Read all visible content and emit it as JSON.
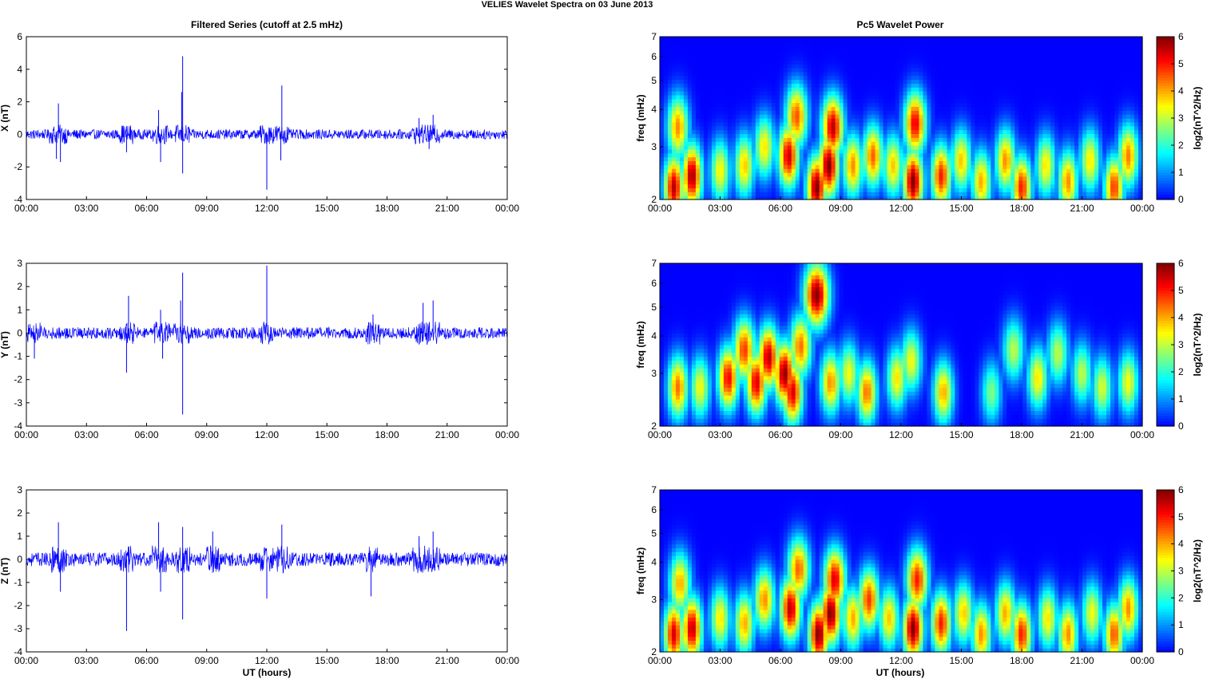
{
  "figure": {
    "title": "VELIES Wavelet Spectra on 03 June      2013",
    "left_column_title": "Filtered Series (cutoff at 2.5 mHz)",
    "right_column_title": "Pc5 Wavelet Power",
    "xlabel": "UT (hours)"
  },
  "chart_data": [
    {
      "type": "line",
      "panel": "X",
      "ylabel": "X (nT)",
      "x_range_hours": [
        0,
        24
      ],
      "x_ticks": [
        "00:00",
        "03:00",
        "06:00",
        "09:00",
        "12:00",
        "15:00",
        "18:00",
        "21:00",
        "00:00"
      ],
      "ylim": [
        -4,
        6
      ],
      "y_ticks": [
        "6",
        "4",
        "2",
        "0",
        "-2",
        "-4"
      ],
      "color": "#0000ff",
      "baseline_noise_nT": 0.3,
      "spikes": [
        {
          "x": 1.6,
          "y": 1.9
        },
        {
          "x": 1.7,
          "y": -1.7
        },
        {
          "x": 1.5,
          "y": -1.5
        },
        {
          "x": 6.6,
          "y": 1.5
        },
        {
          "x": 6.7,
          "y": -1.7
        },
        {
          "x": 5.0,
          "y": -1.1
        },
        {
          "x": 7.8,
          "y": 4.8
        },
        {
          "x": 7.8,
          "y": -2.4
        },
        {
          "x": 7.75,
          "y": 2.6
        },
        {
          "x": 12.0,
          "y": -3.4
        },
        {
          "x": 12.75,
          "y": 3.0
        },
        {
          "x": 12.7,
          "y": -1.6
        },
        {
          "x": 19.6,
          "y": 1.0
        },
        {
          "x": 20.3,
          "y": 1.2
        },
        {
          "x": 20.1,
          "y": -0.9
        }
      ]
    },
    {
      "type": "line",
      "panel": "Y",
      "ylabel": "Y (nT)",
      "x_range_hours": [
        0,
        24
      ],
      "x_ticks": [
        "00:00",
        "03:00",
        "06:00",
        "09:00",
        "12:00",
        "15:00",
        "18:00",
        "21:00",
        "00:00"
      ],
      "ylim": [
        -4,
        3
      ],
      "y_ticks": [
        "3",
        "2",
        "1",
        "0",
        "-1",
        "-2",
        "-3",
        "-4"
      ],
      "color": "#0000ff",
      "baseline_noise_nT": 0.25,
      "spikes": [
        {
          "x": 0.4,
          "y": -1.1
        },
        {
          "x": 5.0,
          "y": -1.7
        },
        {
          "x": 5.1,
          "y": 1.6
        },
        {
          "x": 6.7,
          "y": 1.0
        },
        {
          "x": 6.8,
          "y": -1.1
        },
        {
          "x": 7.8,
          "y": 2.6
        },
        {
          "x": 7.8,
          "y": -3.5
        },
        {
          "x": 7.7,
          "y": 1.4
        },
        {
          "x": 12.0,
          "y": 2.9
        },
        {
          "x": 17.3,
          "y": 0.8
        },
        {
          "x": 19.8,
          "y": 1.3
        },
        {
          "x": 20.3,
          "y": 1.4
        },
        {
          "x": 20.0,
          "y": -0.5
        }
      ]
    },
    {
      "type": "line",
      "panel": "Z",
      "ylabel": "Z (nT)",
      "x_range_hours": [
        0,
        24
      ],
      "x_ticks": [
        "00:00",
        "03:00",
        "06:00",
        "09:00",
        "12:00",
        "15:00",
        "18:00",
        "21:00",
        "00:00"
      ],
      "ylim": [
        -4,
        3
      ],
      "y_ticks": [
        "3",
        "2",
        "1",
        "0",
        "-1",
        "-2",
        "-3",
        "-4"
      ],
      "color": "#0000ff",
      "baseline_noise_nT": 0.3,
      "spikes": [
        {
          "x": 1.6,
          "y": 1.6
        },
        {
          "x": 1.7,
          "y": -1.4
        },
        {
          "x": 5.0,
          "y": -3.1
        },
        {
          "x": 6.6,
          "y": 1.6
        },
        {
          "x": 6.7,
          "y": -1.4
        },
        {
          "x": 7.8,
          "y": 1.4
        },
        {
          "x": 7.8,
          "y": -2.6
        },
        {
          "x": 9.3,
          "y": 1.2
        },
        {
          "x": 12.0,
          "y": -1.7
        },
        {
          "x": 12.75,
          "y": 1.5
        },
        {
          "x": 17.2,
          "y": -1.6
        },
        {
          "x": 19.6,
          "y": 1.0
        },
        {
          "x": 20.3,
          "y": 1.2
        }
      ]
    },
    {
      "type": "heatmap",
      "panel": "X",
      "ylabel": "freq (mHz)",
      "y_scale": "log",
      "ylim_mHz": [
        2,
        7
      ],
      "y_ticks": [
        "7",
        "6",
        "5",
        "4",
        "3",
        "2"
      ],
      "x_ticks": [
        "00:00",
        "03:00",
        "06:00",
        "09:00",
        "12:00",
        "15:00",
        "18:00",
        "21:00",
        "00:00"
      ],
      "colormap": "jet",
      "colorbar_label": "log2(nT^2/Hz)",
      "colorbar_ticks": [
        "6",
        "5",
        "4",
        "3",
        "2",
        "1",
        "0"
      ],
      "clim": [
        0,
        6
      ],
      "blobs": [
        {
          "t": 0.7,
          "f": 2.2,
          "p": 5.6
        },
        {
          "t": 1.6,
          "f": 2.4,
          "p": 5.8
        },
        {
          "t": 0.9,
          "f": 3.5,
          "p": 4.2
        },
        {
          "t": 3.0,
          "f": 2.5,
          "p": 3.5
        },
        {
          "t": 4.2,
          "f": 2.6,
          "p": 3.8
        },
        {
          "t": 5.2,
          "f": 3.0,
          "p": 3.6
        },
        {
          "t": 6.4,
          "f": 2.8,
          "p": 5.5
        },
        {
          "t": 6.8,
          "f": 3.8,
          "p": 4.6
        },
        {
          "t": 7.8,
          "f": 2.2,
          "p": 6.0
        },
        {
          "t": 8.4,
          "f": 2.6,
          "p": 6.0
        },
        {
          "t": 8.6,
          "f": 3.5,
          "p": 5.6
        },
        {
          "t": 9.6,
          "f": 2.6,
          "p": 4.2
        },
        {
          "t": 10.6,
          "f": 2.8,
          "p": 4.5
        },
        {
          "t": 11.6,
          "f": 2.6,
          "p": 3.8
        },
        {
          "t": 12.6,
          "f": 2.3,
          "p": 6.0
        },
        {
          "t": 12.7,
          "f": 3.6,
          "p": 5.3
        },
        {
          "t": 14.0,
          "f": 2.4,
          "p": 5.0
        },
        {
          "t": 15.0,
          "f": 2.7,
          "p": 3.8
        },
        {
          "t": 16.0,
          "f": 2.3,
          "p": 4.0
        },
        {
          "t": 17.2,
          "f": 2.7,
          "p": 4.2
        },
        {
          "t": 18.0,
          "f": 2.2,
          "p": 5.0
        },
        {
          "t": 19.2,
          "f": 2.6,
          "p": 3.6
        },
        {
          "t": 20.3,
          "f": 2.3,
          "p": 4.2
        },
        {
          "t": 21.4,
          "f": 2.7,
          "p": 3.6
        },
        {
          "t": 22.6,
          "f": 2.2,
          "p": 4.8
        },
        {
          "t": 23.3,
          "f": 2.8,
          "p": 4.3
        }
      ]
    },
    {
      "type": "heatmap",
      "panel": "Y",
      "ylabel": "freq (mHz)",
      "y_scale": "log",
      "ylim_mHz": [
        2,
        7
      ],
      "y_ticks": [
        "7",
        "6",
        "5",
        "4",
        "3",
        "2"
      ],
      "x_ticks": [
        "00:00",
        "03:00",
        "06:00",
        "09:00",
        "12:00",
        "15:00",
        "18:00",
        "21:00",
        "00:00"
      ],
      "colormap": "jet",
      "colorbar_label": "log2(nT^2/Hz)",
      "colorbar_ticks": [
        "6",
        "5",
        "4",
        "3",
        "2",
        "1",
        "0"
      ],
      "clim": [
        0,
        6
      ],
      "blobs": [
        {
          "t": 0.9,
          "f": 2.7,
          "p": 4.4
        },
        {
          "t": 2.0,
          "f": 2.7,
          "p": 3.4
        },
        {
          "t": 3.4,
          "f": 2.9,
          "p": 5.2
        },
        {
          "t": 4.2,
          "f": 3.6,
          "p": 4.8
        },
        {
          "t": 4.8,
          "f": 2.8,
          "p": 5.4
        },
        {
          "t": 5.4,
          "f": 3.4,
          "p": 5.6
        },
        {
          "t": 6.2,
          "f": 3.0,
          "p": 5.9
        },
        {
          "t": 6.6,
          "f": 2.6,
          "p": 5.4
        },
        {
          "t": 7.0,
          "f": 3.7,
          "p": 4.4
        },
        {
          "t": 7.8,
          "f": 5.5,
          "p": 6.0
        },
        {
          "t": 8.5,
          "f": 2.8,
          "p": 4.2
        },
        {
          "t": 9.4,
          "f": 3.0,
          "p": 3.4
        },
        {
          "t": 10.3,
          "f": 2.6,
          "p": 4.4
        },
        {
          "t": 11.8,
          "f": 2.9,
          "p": 3.6
        },
        {
          "t": 12.5,
          "f": 3.3,
          "p": 3.4
        },
        {
          "t": 14.1,
          "f": 2.6,
          "p": 4.0
        },
        {
          "t": 16.5,
          "f": 2.6,
          "p": 2.6
        },
        {
          "t": 17.6,
          "f": 3.6,
          "p": 3.0
        },
        {
          "t": 18.8,
          "f": 2.9,
          "p": 3.6
        },
        {
          "t": 19.8,
          "f": 3.5,
          "p": 3.0
        },
        {
          "t": 21.0,
          "f": 3.0,
          "p": 3.0
        },
        {
          "t": 22.0,
          "f": 2.7,
          "p": 3.2
        },
        {
          "t": 23.3,
          "f": 2.8,
          "p": 3.4
        }
      ]
    },
    {
      "type": "heatmap",
      "panel": "Z",
      "ylabel": "freq (mHz)",
      "y_scale": "log",
      "ylim_mHz": [
        2,
        7
      ],
      "y_ticks": [
        "7",
        "6",
        "5",
        "4",
        "3",
        "2"
      ],
      "x_ticks": [
        "00:00",
        "03:00",
        "06:00",
        "09:00",
        "12:00",
        "15:00",
        "18:00",
        "21:00",
        "00:00"
      ],
      "colormap": "jet",
      "colorbar_label": "log2(nT^2/Hz)",
      "colorbar_ticks": [
        "6",
        "5",
        "4",
        "3",
        "2",
        "1",
        "0"
      ],
      "clim": [
        0,
        6
      ],
      "blobs": [
        {
          "t": 0.7,
          "f": 2.3,
          "p": 5.4
        },
        {
          "t": 1.6,
          "f": 2.4,
          "p": 5.6
        },
        {
          "t": 1.0,
          "f": 3.4,
          "p": 4.0
        },
        {
          "t": 3.0,
          "f": 2.6,
          "p": 3.6
        },
        {
          "t": 4.2,
          "f": 2.5,
          "p": 4.0
        },
        {
          "t": 5.2,
          "f": 3.0,
          "p": 4.2
        },
        {
          "t": 6.5,
          "f": 2.8,
          "p": 5.6
        },
        {
          "t": 6.9,
          "f": 3.8,
          "p": 4.5
        },
        {
          "t": 7.9,
          "f": 2.3,
          "p": 6.0
        },
        {
          "t": 8.5,
          "f": 2.7,
          "p": 6.0
        },
        {
          "t": 8.7,
          "f": 3.5,
          "p": 5.4
        },
        {
          "t": 9.6,
          "f": 2.6,
          "p": 4.0
        },
        {
          "t": 10.4,
          "f": 3.0,
          "p": 4.8
        },
        {
          "t": 11.4,
          "f": 2.6,
          "p": 3.8
        },
        {
          "t": 12.6,
          "f": 2.4,
          "p": 6.0
        },
        {
          "t": 12.8,
          "f": 3.5,
          "p": 5.0
        },
        {
          "t": 14.0,
          "f": 2.5,
          "p": 5.0
        },
        {
          "t": 15.1,
          "f": 2.7,
          "p": 3.8
        },
        {
          "t": 16.0,
          "f": 2.3,
          "p": 4.2
        },
        {
          "t": 17.2,
          "f": 2.7,
          "p": 4.0
        },
        {
          "t": 18.0,
          "f": 2.3,
          "p": 5.0
        },
        {
          "t": 19.3,
          "f": 2.6,
          "p": 3.6
        },
        {
          "t": 20.3,
          "f": 2.3,
          "p": 4.2
        },
        {
          "t": 21.5,
          "f": 2.7,
          "p": 3.4
        },
        {
          "t": 22.6,
          "f": 2.3,
          "p": 4.6
        },
        {
          "t": 23.3,
          "f": 2.8,
          "p": 4.2
        }
      ]
    }
  ]
}
